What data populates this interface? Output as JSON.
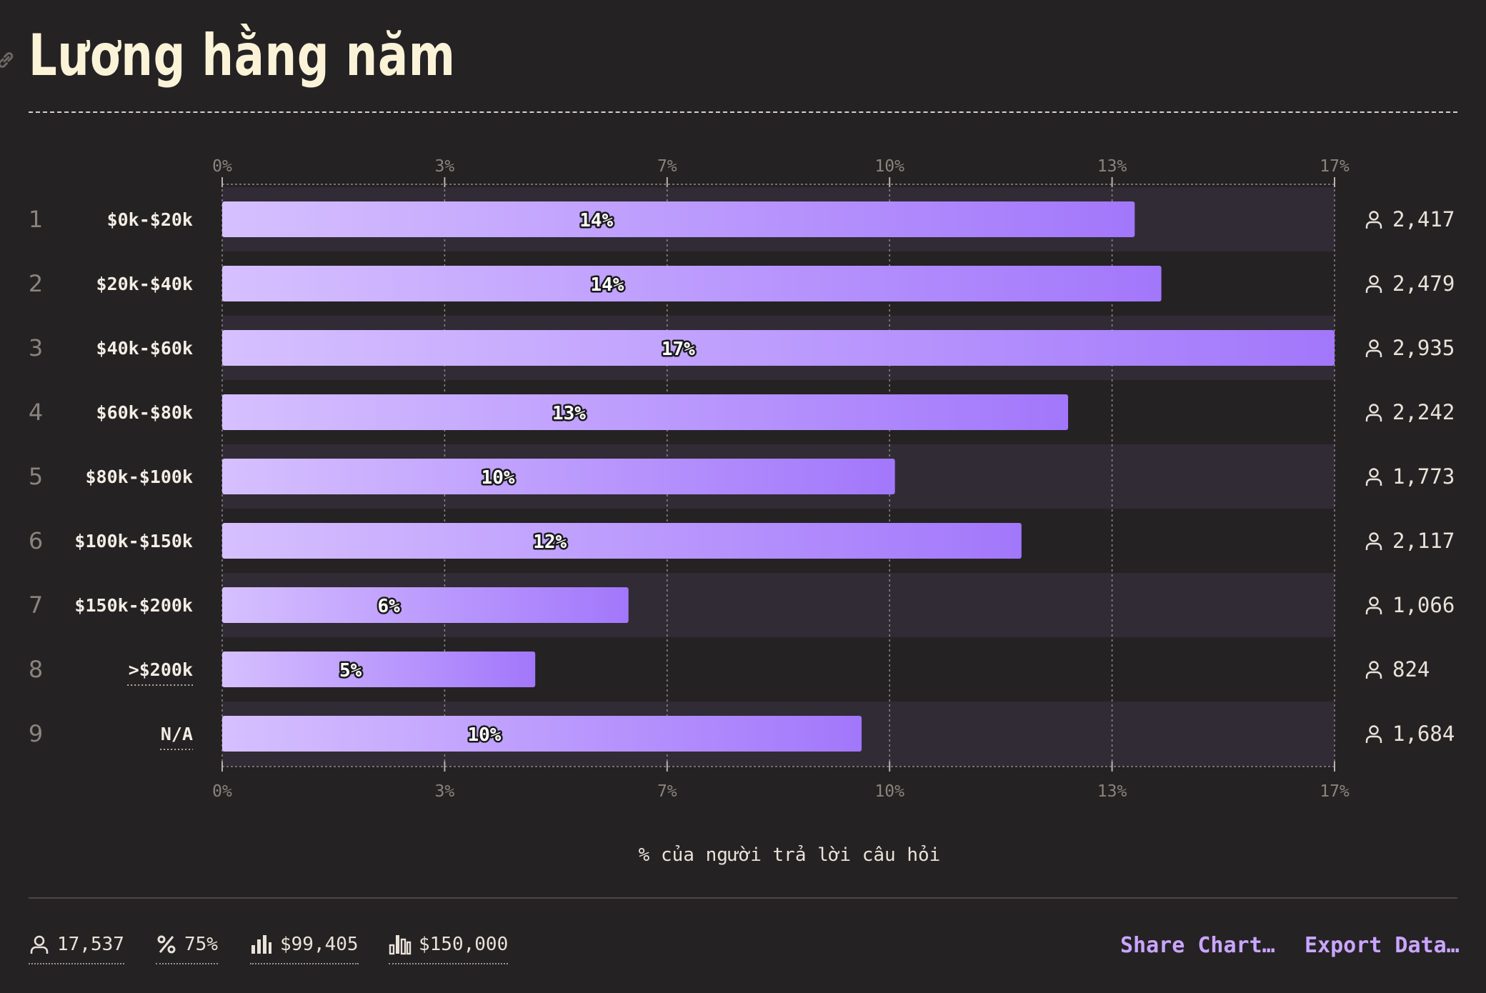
{
  "title": "Lương hằng năm",
  "chart_data": {
    "type": "bar",
    "orientation": "horizontal",
    "categories": [
      "$0k-$20k",
      "$20k-$40k",
      "$40k-$60k",
      "$60k-$80k",
      "$80k-$100k",
      "$100k-$150k",
      "$150k-$200k",
      ">$200k",
      "N/A"
    ],
    "ranks": [
      "1",
      "2",
      "3",
      "4",
      "5",
      "6",
      "7",
      "8",
      "9"
    ],
    "values": [
      13.7,
      14.1,
      16.7,
      12.7,
      10.1,
      12.0,
      6.1,
      4.7,
      9.6
    ],
    "data_labels": [
      "14%",
      "14%",
      "17%",
      "13%",
      "10%",
      "12%",
      "6%",
      "5%",
      "10%"
    ],
    "counts": [
      "2,417",
      "2,479",
      "2,935",
      "2,242",
      "1,773",
      "2,117",
      "1,066",
      "824",
      "1,684"
    ],
    "xlabel": "% của người trả lời câu hỏi",
    "xlim": [
      0,
      16.7
    ],
    "ticks": [
      {
        "value": 0,
        "label": "0%"
      },
      {
        "value": 3.34,
        "label": "3%"
      },
      {
        "value": 6.68,
        "label": "7%"
      },
      {
        "value": 10.02,
        "label": "10%"
      },
      {
        "value": 13.36,
        "label": "13%"
      },
      {
        "value": 16.7,
        "label": "17%"
      }
    ],
    "ticks_top_and_bottom": true,
    "grid": true,
    "dotted_underline_categories": [
      ">$200k",
      "N/A"
    ],
    "colors": {
      "bar_start": "#d6c0ff",
      "bar_end": "#a277fb",
      "stripe": "#312b36",
      "grid": "#8e8a86",
      "label_outline": "#1a1a1a"
    }
  },
  "footer": {
    "stats": [
      {
        "icon": "person-icon",
        "value": "17,537"
      },
      {
        "icon": "percent-icon",
        "value": "75%"
      },
      {
        "icon": "median-bars-icon",
        "value": "$99,405"
      },
      {
        "icon": "mode-bars-icon",
        "value": "$150,000"
      }
    ],
    "share_label": "Share Chart…",
    "export_label": "Export Data…"
  },
  "colors": {
    "background": "#252224",
    "title": "#fbf3d8",
    "accent": "#c9a6ff",
    "text": "#e8e2d8",
    "muted": "#8a847c"
  }
}
